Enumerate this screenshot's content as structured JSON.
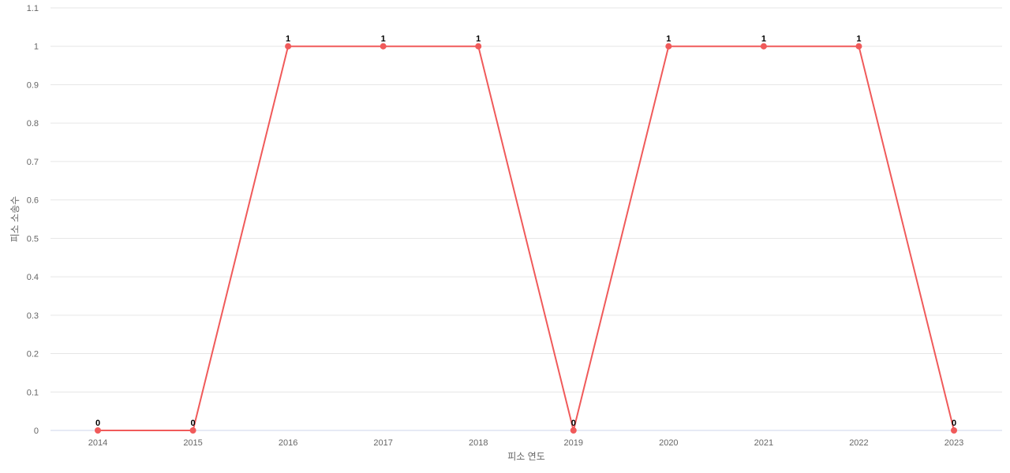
{
  "chart_data": {
    "type": "line",
    "title": "",
    "xlabel": "피소 연도",
    "ylabel": "피소 소송수",
    "categories": [
      "2014",
      "2015",
      "2016",
      "2017",
      "2018",
      "2019",
      "2020",
      "2021",
      "2022",
      "2023"
    ],
    "values": [
      0,
      0,
      1,
      1,
      1,
      0,
      1,
      1,
      1,
      0
    ],
    "ylim": [
      0,
      1.1
    ],
    "yticks": [
      "0",
      "0.1",
      "0.2",
      "0.3",
      "0.4",
      "0.5",
      "0.6",
      "0.7",
      "0.8",
      "0.9",
      "1",
      "1.1"
    ],
    "grid": true,
    "legend": "none",
    "colors": {
      "line": "#f05a5a",
      "grid": "#e6e6e6",
      "baseline": "#ccd6eb"
    }
  }
}
